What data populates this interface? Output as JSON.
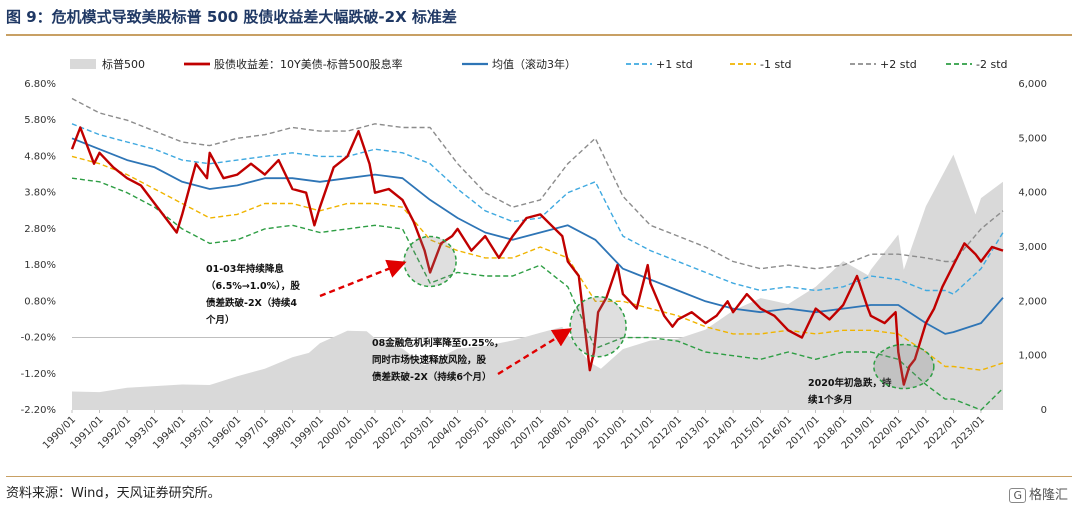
{
  "figure_title": "图 9：危机模式导致美股标普 500 股债收益差大幅跌破-2X 标准差",
  "source": "资料来源：Wind，天风证券研究所。",
  "watermark": "格隆汇",
  "colors": {
    "spx": "#d9d9d9",
    "spread": "#c00000",
    "mean": "#2e75b6",
    "p1": "#3fa9e0",
    "m1": "#f0b400",
    "p2": "#8c8c8c",
    "m2": "#2e9e44"
  },
  "chart_data": {
    "type": "line",
    "title": "",
    "legend": {
      "placement": "top",
      "entries": [
        "标普500",
        "股债收益差：10Y美债-标普500股息率",
        "均值（滚动3年）",
        "+1 std",
        "-1 std",
        "+2 std",
        "-2 std"
      ]
    },
    "x_ticks": [
      "1990/01",
      "1991/01",
      "1992/01",
      "1993/01",
      "1994/01",
      "1995/01",
      "1996/01",
      "1997/01",
      "1998/01",
      "1999/01",
      "2000/01",
      "2001/01",
      "2002/01",
      "2003/01",
      "2004/01",
      "2005/01",
      "2006/01",
      "2007/01",
      "2008/01",
      "2009/01",
      "2010/01",
      "2011/01",
      "2012/01",
      "2013/01",
      "2014/01",
      "2015/01",
      "2016/01",
      "2017/01",
      "2018/01",
      "2019/01",
      "2020/01",
      "2021/01",
      "2022/01",
      "2023/01"
    ],
    "y_left": {
      "ticks": [
        "6.80%",
        "5.80%",
        "4.80%",
        "3.80%",
        "2.80%",
        "1.80%",
        "0.80%",
        "-0.20%",
        "-1.20%",
        "-2.20%"
      ],
      "range": [
        -2.2,
        6.8
      ],
      "unit": "%"
    },
    "y_right": {
      "ticks": [
        "6,000",
        "5,000",
        "4,000",
        "3,000",
        "2,000",
        "1,000",
        "0"
      ],
      "range": [
        0,
        6000
      ]
    },
    "x_range": [
      1990.0,
      2023.8
    ],
    "series": [
      {
        "key": "spx",
        "axis": "right",
        "style": "area",
        "x": [
          1990.0,
          1991.0,
          1992.0,
          1993.0,
          1994.0,
          1995.0,
          1996.0,
          1997.0,
          1998.0,
          1998.6,
          1999.0,
          2000.0,
          2000.7,
          2001.0,
          2002.0,
          2002.8,
          2003.0,
          2004.0,
          2005.0,
          2006.0,
          2007.0,
          2007.8,
          2008.0,
          2008.8,
          2009.2,
          2010.0,
          2011.0,
          2012.0,
          2013.0,
          2014.0,
          2015.0,
          2016.0,
          2017.0,
          2018.0,
          2018.9,
          2019.0,
          2020.0,
          2020.2,
          2021.0,
          2022.0,
          2022.8,
          2023.0,
          2023.8
        ],
        "y": [
          340,
          330,
          410,
          440,
          470,
          460,
          620,
          760,
          970,
          1050,
          1230,
          1460,
          1450,
          1320,
          1130,
          820,
          880,
          1130,
          1180,
          1280,
          1420,
          1530,
          1380,
          880,
          760,
          1120,
          1280,
          1310,
          1480,
          1830,
          2060,
          1950,
          2270,
          2740,
          2480,
          2580,
          3230,
          2580,
          3750,
          4700,
          3600,
          3900,
          4200
        ]
      },
      {
        "key": "spread",
        "axis": "left",
        "style": "line",
        "x": [
          1990.0,
          1990.3,
          1990.8,
          1991.0,
          1991.5,
          1992.0,
          1992.5,
          1993.0,
          1993.5,
          1993.8,
          1994.0,
          1994.5,
          1994.9,
          1995.0,
          1995.5,
          1996.0,
          1996.5,
          1997.0,
          1997.5,
          1998.0,
          1998.5,
          1998.8,
          1999.0,
          1999.5,
          2000.0,
          2000.4,
          2000.8,
          2001.0,
          2001.5,
          2002.0,
          2002.4,
          2002.8,
          2003.0,
          2003.4,
          2003.8,
          2004.0,
          2004.5,
          2005.0,
          2005.5,
          2006.0,
          2006.5,
          2007.0,
          2007.4,
          2007.8,
          2008.0,
          2008.4,
          2008.8,
          2008.95,
          2009.1,
          2009.4,
          2009.8,
          2010.0,
          2010.5,
          2010.9,
          2011.0,
          2011.5,
          2011.8,
          2012.0,
          2012.5,
          2013.0,
          2013.4,
          2013.8,
          2014.0,
          2014.5,
          2015.0,
          2015.5,
          2016.0,
          2016.5,
          2017.0,
          2017.5,
          2018.0,
          2018.5,
          2018.9,
          2019.0,
          2019.5,
          2019.9,
          2020.0,
          2020.2,
          2020.4,
          2020.6,
          2021.0,
          2021.3,
          2021.6,
          2022.0,
          2022.4,
          2022.8,
          2023.0,
          2023.4,
          2023.8
        ],
        "y": [
          5.0,
          5.6,
          4.6,
          4.9,
          4.5,
          4.2,
          4.0,
          3.5,
          3.0,
          2.7,
          3.2,
          4.6,
          4.2,
          4.9,
          4.2,
          4.3,
          4.6,
          4.3,
          4.7,
          3.9,
          3.8,
          2.9,
          3.4,
          4.5,
          4.8,
          5.5,
          4.6,
          3.8,
          3.9,
          3.6,
          3.0,
          2.2,
          1.6,
          2.4,
          2.6,
          2.8,
          2.2,
          2.6,
          2.0,
          2.6,
          3.1,
          3.2,
          2.9,
          2.6,
          1.9,
          1.5,
          -1.1,
          -0.6,
          0.5,
          0.9,
          1.8,
          1.0,
          0.6,
          1.8,
          1.3,
          0.4,
          0.1,
          0.3,
          0.5,
          0.2,
          0.4,
          0.8,
          0.5,
          1.0,
          0.6,
          0.4,
          0.0,
          -0.2,
          0.6,
          0.3,
          0.7,
          1.5,
          0.6,
          0.4,
          0.2,
          0.5,
          -0.6,
          -1.5,
          -1.0,
          -0.8,
          0.2,
          0.6,
          1.2,
          1.8,
          2.4,
          2.1,
          1.9,
          2.3,
          2.2
        ]
      },
      {
        "key": "mean",
        "axis": "left",
        "style": "line",
        "x": [
          1990.0,
          1991.0,
          1992.0,
          1993.0,
          1994.0,
          1995.0,
          1996.0,
          1997.0,
          1998.0,
          1999.0,
          2000.0,
          2001.0,
          2002.0,
          2003.0,
          2004.0,
          2005.0,
          2006.0,
          2007.0,
          2008.0,
          2009.0,
          2010.0,
          2011.0,
          2012.0,
          2013.0,
          2014.0,
          2015.0,
          2016.0,
          2017.0,
          2018.0,
          2019.0,
          2020.0,
          2021.0,
          2021.7,
          2022.0,
          2023.0,
          2023.8
        ],
        "y": [
          5.3,
          5.0,
          4.7,
          4.5,
          4.1,
          3.9,
          4.0,
          4.2,
          4.2,
          4.1,
          4.2,
          4.3,
          4.2,
          3.6,
          3.1,
          2.7,
          2.5,
          2.7,
          2.9,
          2.5,
          1.7,
          1.4,
          1.1,
          0.8,
          0.6,
          0.5,
          0.6,
          0.5,
          0.6,
          0.7,
          0.7,
          0.2,
          -0.1,
          -0.05,
          0.2,
          0.9
        ]
      },
      {
        "key": "p1",
        "axis": "left",
        "style": "dash",
        "x": [
          1990.0,
          1991.0,
          1992.0,
          1993.0,
          1994.0,
          1995.0,
          1996.0,
          1997.0,
          1998.0,
          1999.0,
          2000.0,
          2001.0,
          2002.0,
          2003.0,
          2004.0,
          2005.0,
          2006.0,
          2007.0,
          2008.0,
          2009.0,
          2010.0,
          2011.0,
          2012.0,
          2013.0,
          2014.0,
          2015.0,
          2016.0,
          2017.0,
          2018.0,
          2019.0,
          2020.0,
          2021.0,
          2021.7,
          2022.0,
          2023.0,
          2023.8
        ],
        "y": [
          5.7,
          5.4,
          5.2,
          5.0,
          4.7,
          4.6,
          4.7,
          4.8,
          4.9,
          4.8,
          4.8,
          5.0,
          4.9,
          4.6,
          3.9,
          3.3,
          3.0,
          3.1,
          3.8,
          4.1,
          2.6,
          2.2,
          1.9,
          1.6,
          1.3,
          1.1,
          1.2,
          1.1,
          1.2,
          1.5,
          1.4,
          1.1,
          1.1,
          1.0,
          1.7,
          2.7
        ]
      },
      {
        "key": "m1",
        "axis": "left",
        "style": "dash",
        "x": [
          1990.0,
          1991.0,
          1992.0,
          1993.0,
          1994.0,
          1995.0,
          1996.0,
          1997.0,
          1998.0,
          1999.0,
          2000.0,
          2001.0,
          2002.0,
          2003.0,
          2004.0,
          2005.0,
          2006.0,
          2007.0,
          2008.0,
          2009.0,
          2010.0,
          2011.0,
          2012.0,
          2013.0,
          2014.0,
          2015.0,
          2016.0,
          2017.0,
          2018.0,
          2019.0,
          2020.0,
          2021.0,
          2021.7,
          2022.0,
          2023.0,
          2023.8
        ],
        "y": [
          4.8,
          4.6,
          4.3,
          3.9,
          3.5,
          3.1,
          3.2,
          3.5,
          3.5,
          3.3,
          3.5,
          3.5,
          3.4,
          2.5,
          2.2,
          2.0,
          2.0,
          2.3,
          2.0,
          0.8,
          0.8,
          0.6,
          0.4,
          0.1,
          -0.1,
          -0.1,
          0.0,
          -0.1,
          0.0,
          0.0,
          -0.1,
          -0.6,
          -1.0,
          -1.0,
          -1.1,
          -0.9
        ]
      },
      {
        "key": "p2",
        "axis": "left",
        "style": "dash",
        "x": [
          1990.0,
          1991.0,
          1992.0,
          1993.0,
          1994.0,
          1995.0,
          1996.0,
          1997.0,
          1998.0,
          1999.0,
          2000.0,
          2001.0,
          2002.0,
          2003.0,
          2004.0,
          2005.0,
          2006.0,
          2007.0,
          2008.0,
          2009.0,
          2010.0,
          2011.0,
          2012.0,
          2013.0,
          2014.0,
          2015.0,
          2016.0,
          2017.0,
          2018.0,
          2019.0,
          2020.0,
          2021.0,
          2021.7,
          2022.0,
          2023.0,
          2023.8
        ],
        "y": [
          6.4,
          6.0,
          5.8,
          5.5,
          5.2,
          5.1,
          5.3,
          5.4,
          5.6,
          5.5,
          5.5,
          5.7,
          5.6,
          5.6,
          4.6,
          3.8,
          3.4,
          3.6,
          4.6,
          5.3,
          3.7,
          2.9,
          2.6,
          2.3,
          1.9,
          1.7,
          1.8,
          1.7,
          1.8,
          2.1,
          2.1,
          2.0,
          1.9,
          1.9,
          2.8,
          3.3
        ]
      },
      {
        "key": "m2",
        "axis": "left",
        "style": "dash",
        "x": [
          1990.0,
          1991.0,
          1992.0,
          1993.0,
          1994.0,
          1995.0,
          1996.0,
          1997.0,
          1998.0,
          1999.0,
          2000.0,
          2001.0,
          2002.0,
          2003.0,
          2004.0,
          2005.0,
          2006.0,
          2007.0,
          2008.0,
          2009.0,
          2010.0,
          2011.0,
          2012.0,
          2013.0,
          2014.0,
          2015.0,
          2016.0,
          2017.0,
          2018.0,
          2019.0,
          2020.0,
          2021.0,
          2021.7,
          2022.0,
          2023.0,
          2023.8
        ],
        "y": [
          4.2,
          4.1,
          3.8,
          3.4,
          2.8,
          2.4,
          2.5,
          2.8,
          2.9,
          2.7,
          2.8,
          2.9,
          2.8,
          1.3,
          1.6,
          1.5,
          1.5,
          1.8,
          1.2,
          -0.5,
          -0.2,
          -0.2,
          -0.3,
          -0.6,
          -0.7,
          -0.8,
          -0.6,
          -0.8,
          -0.6,
          -0.6,
          -0.8,
          -1.5,
          -1.9,
          -1.9,
          -2.2,
          -1.6
        ]
      }
    ],
    "annotations": [
      {
        "lines": [
          "01-03年持续降息",
          "（6.5%→1.0%），股",
          "债差跌破-2X（持续4",
          "个月）"
        ]
      },
      {
        "lines": [
          "08金融危机利率降至0.25%，",
          "同时市场快速释放风险，股",
          "债差跌破-2X（持续6个月）"
        ]
      },
      {
        "lines": [
          "2020年初急跌，持",
          "续1个多月"
        ]
      }
    ]
  }
}
